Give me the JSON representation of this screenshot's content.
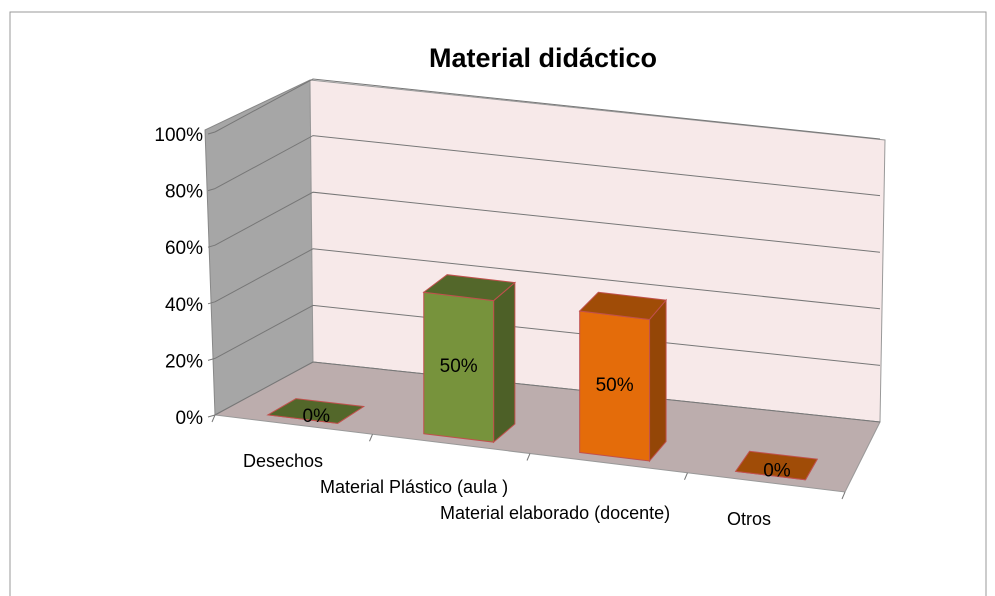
{
  "chart_data": {
    "type": "bar3d",
    "title": "Material didáctico",
    "categories": [
      "Desechos",
      "Material Plástico (aula )",
      "Material elaborado (docente)",
      "Otros"
    ],
    "values": [
      0,
      50,
      50,
      0
    ],
    "value_labels": [
      "0%",
      "50%",
      "50%",
      "0%"
    ],
    "colors": [
      "#77933c",
      "#77933c",
      "#e46c0a",
      "#e46c0a"
    ],
    "ylim": [
      0,
      100
    ],
    "yticks": [
      {
        "value": 0,
        "label": "0%"
      },
      {
        "value": 20,
        "label": "20%"
      },
      {
        "value": 40,
        "label": "40%"
      },
      {
        "value": 60,
        "label": "60%"
      },
      {
        "value": 80,
        "label": "80%"
      },
      {
        "value": 100,
        "label": "100%"
      }
    ],
    "grid": true
  }
}
